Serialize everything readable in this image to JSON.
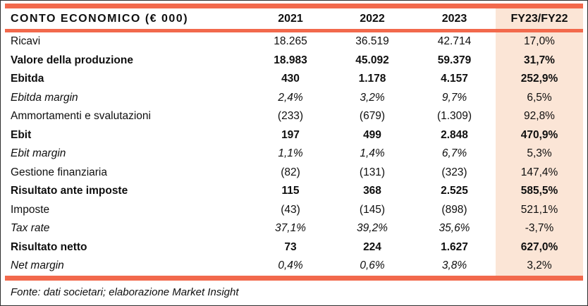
{
  "colors": {
    "accent_rule": "#F2694C",
    "highlight_column_bg": "#FBE5D6",
    "text": "#0f0f0f",
    "frame_border": "#2e2e2e"
  },
  "chart_data": {
    "type": "table",
    "title": "CONTO ECONOMICO (€ 000)",
    "columns": [
      "2021",
      "2022",
      "2023",
      "FY23/FY22"
    ],
    "rows": [
      {
        "label": "Ricavi",
        "style": "regular",
        "values": [
          "18.265",
          "36.519",
          "42.714",
          "17,0%"
        ]
      },
      {
        "label": "Valore della produzione",
        "style": "bold",
        "values": [
          "18.983",
          "45.092",
          "59.379",
          "31,7%"
        ]
      },
      {
        "label": "Ebitda",
        "style": "bold",
        "values": [
          "430",
          "1.178",
          "4.157",
          "252,9%"
        ]
      },
      {
        "label": "Ebitda margin",
        "style": "italic",
        "values": [
          "2,4%",
          "3,2%",
          "9,7%",
          "6,5%"
        ]
      },
      {
        "label": "Ammortamenti e svalutazioni",
        "style": "regular",
        "values": [
          "(233)",
          "(679)",
          "(1.309)",
          "92,8%"
        ]
      },
      {
        "label": "Ebit",
        "style": "bold",
        "values": [
          "197",
          "499",
          "2.848",
          "470,9%"
        ]
      },
      {
        "label": "Ebit margin",
        "style": "italic",
        "values": [
          "1,1%",
          "1,4%",
          "6,7%",
          "5,3%"
        ]
      },
      {
        "label": "Gestione finanziaria",
        "style": "regular",
        "values": [
          "(82)",
          "(131)",
          "(323)",
          "147,4%"
        ]
      },
      {
        "label": "Risultato ante imposte",
        "style": "bold",
        "values": [
          "115",
          "368",
          "2.525",
          "585,5%"
        ]
      },
      {
        "label": "Imposte",
        "style": "regular",
        "values": [
          "(43)",
          "(145)",
          "(898)",
          "521,1%"
        ]
      },
      {
        "label": "Tax rate",
        "style": "italic",
        "values": [
          "37,1%",
          "39,2%",
          "35,6%",
          "-3,7%"
        ]
      },
      {
        "label": "Risultato netto",
        "style": "bold",
        "values": [
          "73",
          "224",
          "1.627",
          "627,0%"
        ]
      },
      {
        "label": "Net margin",
        "style": "italic",
        "values": [
          "0,4%",
          "0,6%",
          "3,8%",
          "3,2%"
        ]
      }
    ],
    "source_note": "Fonte: dati societari; elaborazione Market Insight"
  }
}
